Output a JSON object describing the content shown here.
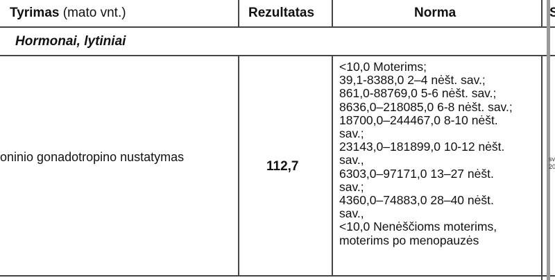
{
  "table": {
    "headers": {
      "test": "Tyrimas",
      "test_unit": "(mato vnt.)",
      "result": "Rezultatas",
      "norm": "Norma",
      "cut": "S"
    },
    "section": "Hormonai, lytiniai",
    "rows": [
      {
        "test": "oninio gonadotropino nustatymas",
        "result": "112,7",
        "norm_lines": [
          "<10,0 Moterims;",
          "39,1-8388,0 2–4 nėšt. sav.;",
          "861,0-88769,0 5-6 nėšt. sav.;",
          "8636,0–218085,0 6-8 nėšt. sav.;",
          "18700,0–244467,0 8-10 nėšt.",
          "sav.;",
          "23143,0–181899,0 10-12 nėšt.",
          "sav.,",
          "6303,0–97171,0 13–27 nėšt.",
          "sav.;",
          "4360,0–74883,0 28–40 nėšt.",
          "sav.,",
          "<10,0 Nenėščioms moterims,",
          "moterims po menopauzės"
        ],
        "extra_lines": [
          "sv",
          "20"
        ]
      }
    ]
  }
}
